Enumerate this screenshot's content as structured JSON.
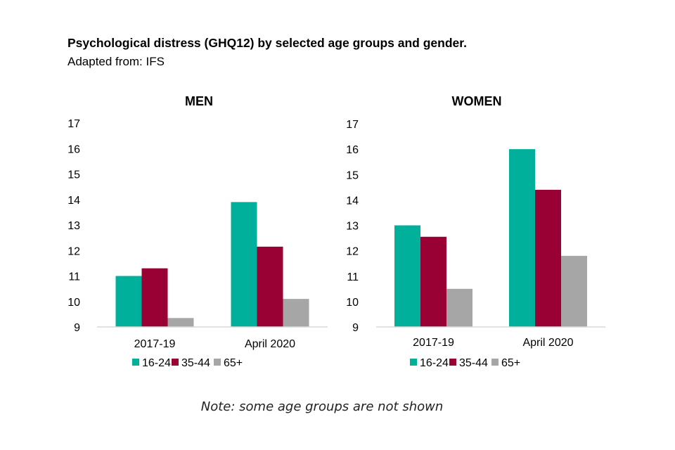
{
  "title": "Psychological distress (GHQ12) by selected age groups and gender.",
  "subtitle": "Adapted from: IFS",
  "note": "Note: some age groups are not shown",
  "colors": {
    "16-24": "#00B09B",
    "35-44": "#990033",
    "65+": "#A6A6A6",
    "axis": "#D9D9D9"
  },
  "chart_data": [
    {
      "type": "bar",
      "title": "MEN",
      "categories": [
        "2017-19",
        "April 2020"
      ],
      "ylim": [
        9,
        17
      ],
      "yticks": [
        "9",
        "10",
        "11",
        "12",
        "13",
        "14",
        "15",
        "16",
        "17"
      ],
      "legend_position": "bottom",
      "series": [
        {
          "name": "16-24",
          "values": [
            11.0,
            13.9
          ]
        },
        {
          "name": "35-44",
          "values": [
            11.3,
            12.15
          ]
        },
        {
          "name": "65+",
          "values": [
            9.35,
            10.1
          ]
        }
      ]
    },
    {
      "type": "bar",
      "title": "WOMEN",
      "categories": [
        "2017-19",
        "April 2020"
      ],
      "ylim": [
        9,
        17
      ],
      "yticks": [
        "9",
        "10",
        "11",
        "12",
        "13",
        "14",
        "15",
        "16",
        "17"
      ],
      "legend_position": "bottom",
      "series": [
        {
          "name": "16-24",
          "values": [
            13.0,
            16.0
          ]
        },
        {
          "name": "35-44",
          "values": [
            12.55,
            14.4
          ]
        },
        {
          "name": "65+",
          "values": [
            10.5,
            11.8
          ]
        }
      ]
    }
  ]
}
